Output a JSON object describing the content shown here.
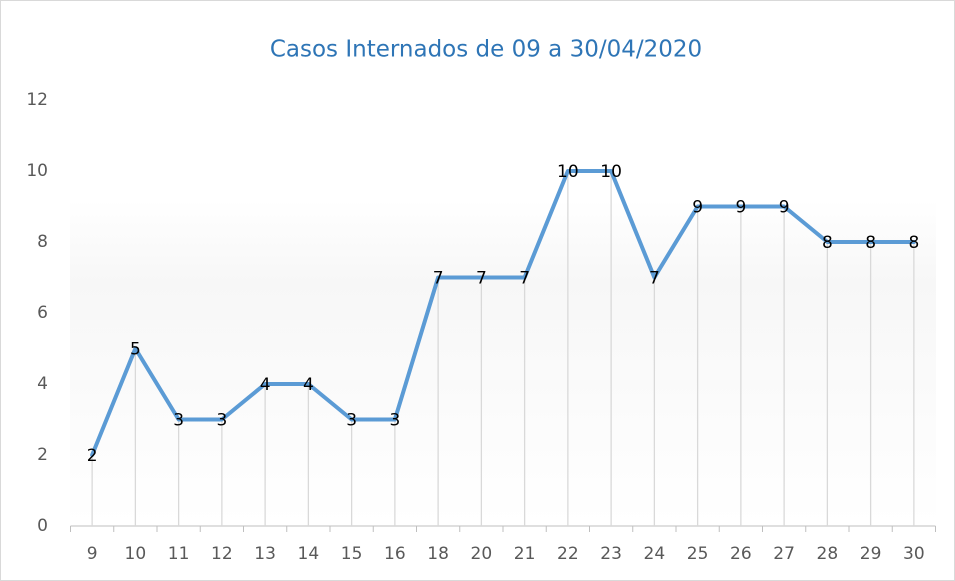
{
  "chart_data": {
    "type": "line",
    "title": "Casos Internados de 09 a 30/04/2020",
    "categories": [
      "9",
      "10",
      "11",
      "12",
      "13",
      "14",
      "15",
      "16",
      "18",
      "20",
      "21",
      "22",
      "23",
      "24",
      "25",
      "26",
      "27",
      "28",
      "29",
      "30"
    ],
    "series": [
      {
        "name": "Casos Internados",
        "color": "#5b9bd5",
        "values": [
          2,
          5,
          3,
          3,
          4,
          4,
          3,
          3,
          7,
          7,
          7,
          10,
          10,
          7,
          9,
          9,
          9,
          8,
          8,
          8
        ]
      }
    ],
    "ylim": [
      0,
      12
    ],
    "yticks": [
      0,
      2,
      4,
      6,
      8,
      10,
      12
    ],
    "grid": false,
    "drop_lines": true,
    "data_labels": true,
    "legend": false
  }
}
